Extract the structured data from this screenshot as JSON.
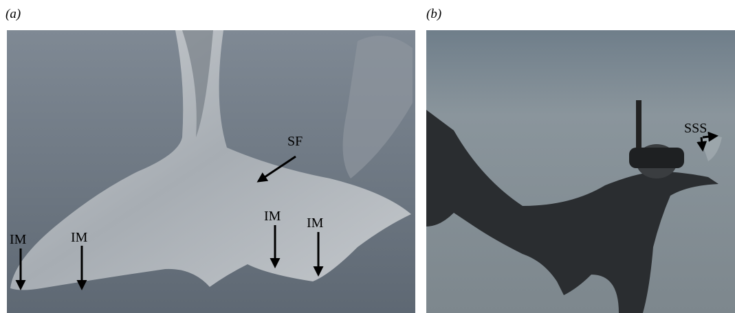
{
  "panels": [
    {
      "label": "(a)",
      "annotations": [
        {
          "text": "SF"
        },
        {
          "text": "IM"
        },
        {
          "text": "IM"
        },
        {
          "text": "IM"
        },
        {
          "text": "IM"
        }
      ]
    },
    {
      "label": "(b)",
      "annotations": [
        {
          "text": "SSS"
        }
      ]
    }
  ]
}
